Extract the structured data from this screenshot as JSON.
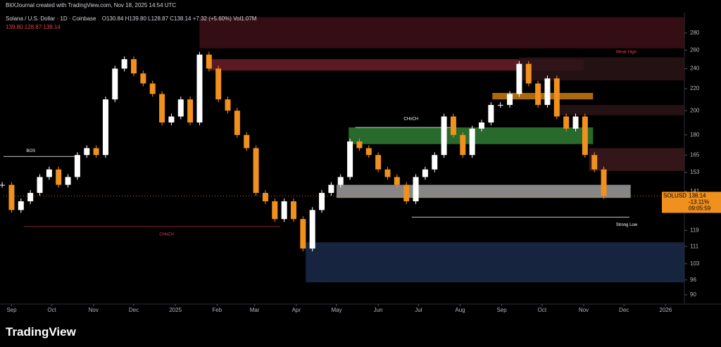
{
  "header": {
    "credit": "BitXJournal created with TradingView.com, Nov 18, 2025 14:54 UTC",
    "symbol": "Solana / U.S. Dollar · 1D · Coinbase",
    "ohlc": "O130.84 H139.80 L128.87 C138.14 +7.32 (+5.60%) Vol1.07M",
    "indicator": "139.80 128.87 138.14"
  },
  "footer": {
    "brand": "TradingView"
  },
  "chart_data": {
    "type": "candlestick",
    "log_scale": true,
    "xlim": [
      "2024-08-26",
      "2026-01-15"
    ],
    "ylim": [
      87,
      304
    ],
    "yticks": [
      280,
      260,
      240,
      220,
      200,
      180,
      165,
      153,
      141,
      119,
      111,
      103,
      96,
      90
    ],
    "xticks": [
      {
        "value": "2024-09-01",
        "label": "Sep"
      },
      {
        "value": "2024-10-01",
        "label": "Oct"
      },
      {
        "value": "2024-11-01",
        "label": "Nov"
      },
      {
        "value": "2024-12-01",
        "label": "Dec"
      },
      {
        "value": "2025-01-01",
        "label": "2025"
      },
      {
        "value": "2025-02-01",
        "label": "Feb"
      },
      {
        "value": "2025-03-01",
        "label": "Mar"
      },
      {
        "value": "2025-04-01",
        "label": "Apr"
      },
      {
        "value": "2025-05-01",
        "label": "May"
      },
      {
        "value": "2025-06-01",
        "label": "Jun"
      },
      {
        "value": "2025-07-01",
        "label": "Jul"
      },
      {
        "value": "2025-08-01",
        "label": "Aug"
      },
      {
        "value": "2025-09-01",
        "label": "Sep"
      },
      {
        "value": "2025-10-01",
        "label": "Oct"
      },
      {
        "value": "2025-11-01",
        "label": "Nov"
      },
      {
        "value": "2025-12-01",
        "label": "Dec"
      },
      {
        "value": "2026-01-01",
        "label": "2026"
      }
    ],
    "up_color": "#ffffff",
    "down_color": "#f0901e",
    "x": [
      "2024-08-25",
      "2024-09-01",
      "2024-09-08",
      "2024-09-15",
      "2024-09-22",
      "2024-09-29",
      "2024-10-06",
      "2024-10-13",
      "2024-10-20",
      "2024-10-27",
      "2024-11-03",
      "2024-11-10",
      "2024-11-17",
      "2024-11-24",
      "2024-12-01",
      "2024-12-08",
      "2024-12-15",
      "2024-12-22",
      "2024-12-29",
      "2025-01-05",
      "2025-01-12",
      "2025-01-19",
      "2025-01-26",
      "2025-02-02",
      "2025-02-09",
      "2025-02-16",
      "2025-02-23",
      "2025-03-02",
      "2025-03-09",
      "2025-03-16",
      "2025-03-23",
      "2025-03-30",
      "2025-04-06",
      "2025-04-13",
      "2025-04-20",
      "2025-04-27",
      "2025-05-04",
      "2025-05-11",
      "2025-05-18",
      "2025-05-25",
      "2025-06-01",
      "2025-06-08",
      "2025-06-15",
      "2025-06-22",
      "2025-06-29",
      "2025-07-06",
      "2025-07-13",
      "2025-07-20",
      "2025-07-27",
      "2025-08-03",
      "2025-08-10",
      "2025-08-17",
      "2025-08-24",
      "2025-08-31",
      "2025-09-07",
      "2025-09-14",
      "2025-09-21",
      "2025-09-28",
      "2025-10-05",
      "2025-10-12",
      "2025-10-19",
      "2025-10-26",
      "2025-11-02",
      "2025-11-09",
      "2025-11-16"
    ],
    "series": [
      {
        "name": "SOLUSD",
        "values": [
          145,
          130,
          135,
          140,
          150,
          155,
          145,
          150,
          165,
          170,
          165,
          210,
          240,
          250,
          235,
          225,
          215,
          190,
          195,
          210,
          190,
          255,
          240,
          210,
          200,
          180,
          170,
          140,
          135,
          125,
          135,
          125,
          110,
          130,
          140,
          145,
          150,
          175,
          170,
          165,
          155,
          150,
          145,
          135,
          150,
          155,
          165,
          195,
          180,
          165,
          185,
          190,
          205,
          205,
          215,
          245,
          225,
          205,
          230,
          195,
          185,
          195,
          165,
          155,
          138.14
        ]
      }
    ],
    "zones": [
      {
        "from": "2025-01-19",
        "to": "2026-01-15",
        "low": 262,
        "high": 300,
        "color": "#3d1118"
      },
      {
        "from": "2025-01-26",
        "to": "2025-11-01",
        "low": 238,
        "high": 250,
        "color": "#6b1f27"
      },
      {
        "from": "2025-09-14",
        "to": "2026-01-15",
        "low": 228,
        "high": 252,
        "color": "#2a1418"
      },
      {
        "from": "2025-08-25",
        "to": "2025-11-08",
        "low": 210,
        "high": 216,
        "color": "#c87a12"
      },
      {
        "from": "2025-10-10",
        "to": "2026-01-15",
        "low": 196,
        "high": 205,
        "color": "#2a1418"
      },
      {
        "from": "2025-05-10",
        "to": "2025-11-08",
        "low": 173,
        "high": 186,
        "color": "#2f7d32"
      },
      {
        "from": "2025-11-05",
        "to": "2026-01-15",
        "low": 154,
        "high": 170,
        "color": "#3d1a1e"
      },
      {
        "from": "2025-05-01",
        "to": "2025-12-06",
        "low": 137,
        "high": 145,
        "color": "#9e9e9e"
      },
      {
        "from": "2025-04-08",
        "to": "2026-01-15",
        "low": 95,
        "high": 113,
        "color": "#1b2a4a"
      }
    ],
    "levels": [
      {
        "from": "2024-08-26",
        "to": "2024-10-20",
        "price": 164,
        "color": "#ffffff"
      },
      {
        "from": "2024-09-10",
        "to": "2025-03-20",
        "price": 121,
        "color": "#b03040"
      },
      {
        "from": "2025-06-26",
        "to": "2025-12-05",
        "price": 126,
        "color": "#ffffff"
      },
      {
        "from": "2025-05-15",
        "to": "2025-07-26",
        "price": 186,
        "color": "#ffffff"
      }
    ],
    "annotations": [
      {
        "text": "BOS",
        "x": "2024-09-12",
        "y": 168,
        "color": "#ffffff"
      },
      {
        "text": "CHoCH",
        "x": "2024-12-20",
        "y": 117,
        "color": "#e04050"
      },
      {
        "text": "CHoCH",
        "x": "2025-06-20",
        "y": 193,
        "color": "#ffffff"
      },
      {
        "text": "Strong Low",
        "x": "2025-11-25",
        "y": 122,
        "color": "#ffffff"
      },
      {
        "text": "Weak High",
        "x": "2025-11-25",
        "y": 258,
        "color": "#e04050"
      }
    ],
    "price_label": {
      "symbol": "SOLUSD",
      "price": 138.14,
      "change": "-13.11%",
      "countdown": "09:05:59"
    }
  }
}
